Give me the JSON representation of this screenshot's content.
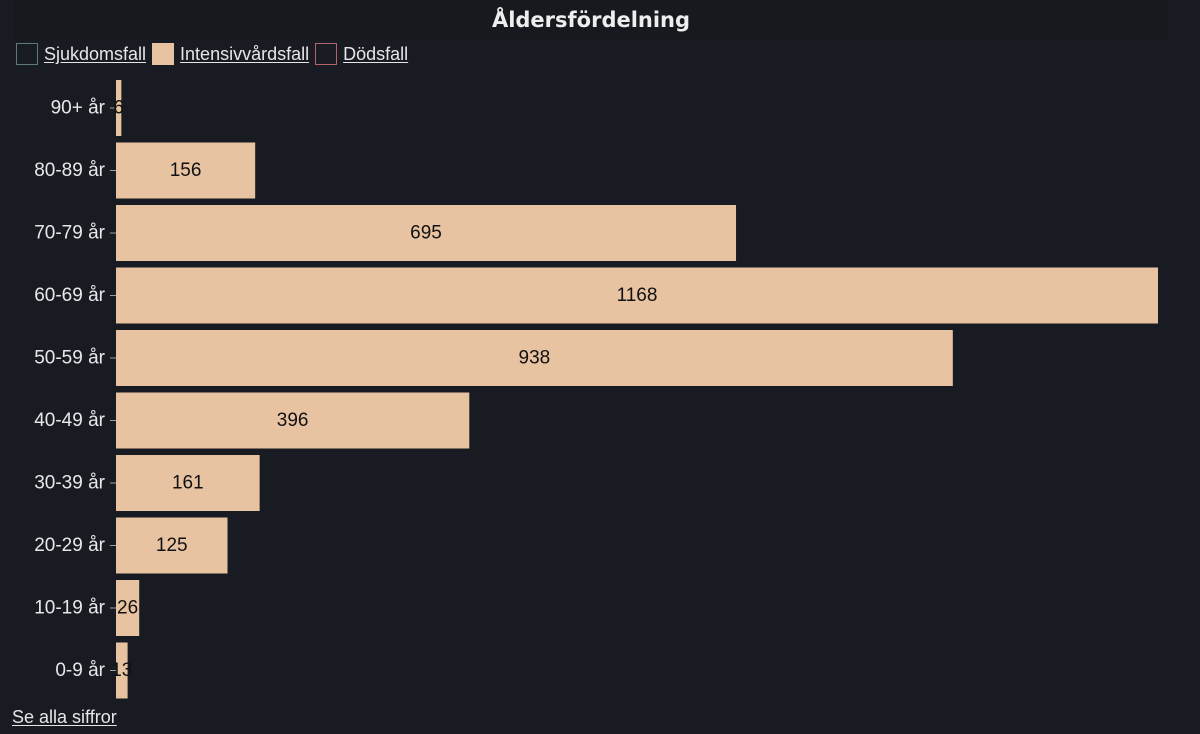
{
  "legend": [
    {
      "label": "Sjukdomsfall",
      "swatch_fill": "none",
      "swatch_border": "#5f7a7a"
    },
    {
      "label": "Intensivvårdsfall",
      "swatch_fill": "#e8c3a2",
      "swatch_border": "#e8c3a2"
    },
    {
      "label": "Dödsfall",
      "swatch_fill": "none",
      "swatch_border": "#b5646c"
    }
  ],
  "footer": {
    "link_label": "Se alla siffror"
  },
  "chart_data": {
    "type": "bar",
    "orientation": "horizontal",
    "title": "Åldersfördelning",
    "categories": [
      "90+ år",
      "80-89 år",
      "70-79 år",
      "60-69 år",
      "50-59 år",
      "40-49 år",
      "30-39 år",
      "20-29 år",
      "10-19 år",
      "0-9 år"
    ],
    "series": [
      {
        "name": "Intensivvårdsfall",
        "values": [
          6,
          156,
          695,
          1168,
          938,
          396,
          161,
          125,
          26,
          13
        ]
      }
    ],
    "xlim": [
      0,
      1168
    ],
    "grid": false,
    "legend_position": "top-left",
    "bar_color": "#e8c3a2",
    "label_color": "#111111",
    "background": "#181c22"
  }
}
